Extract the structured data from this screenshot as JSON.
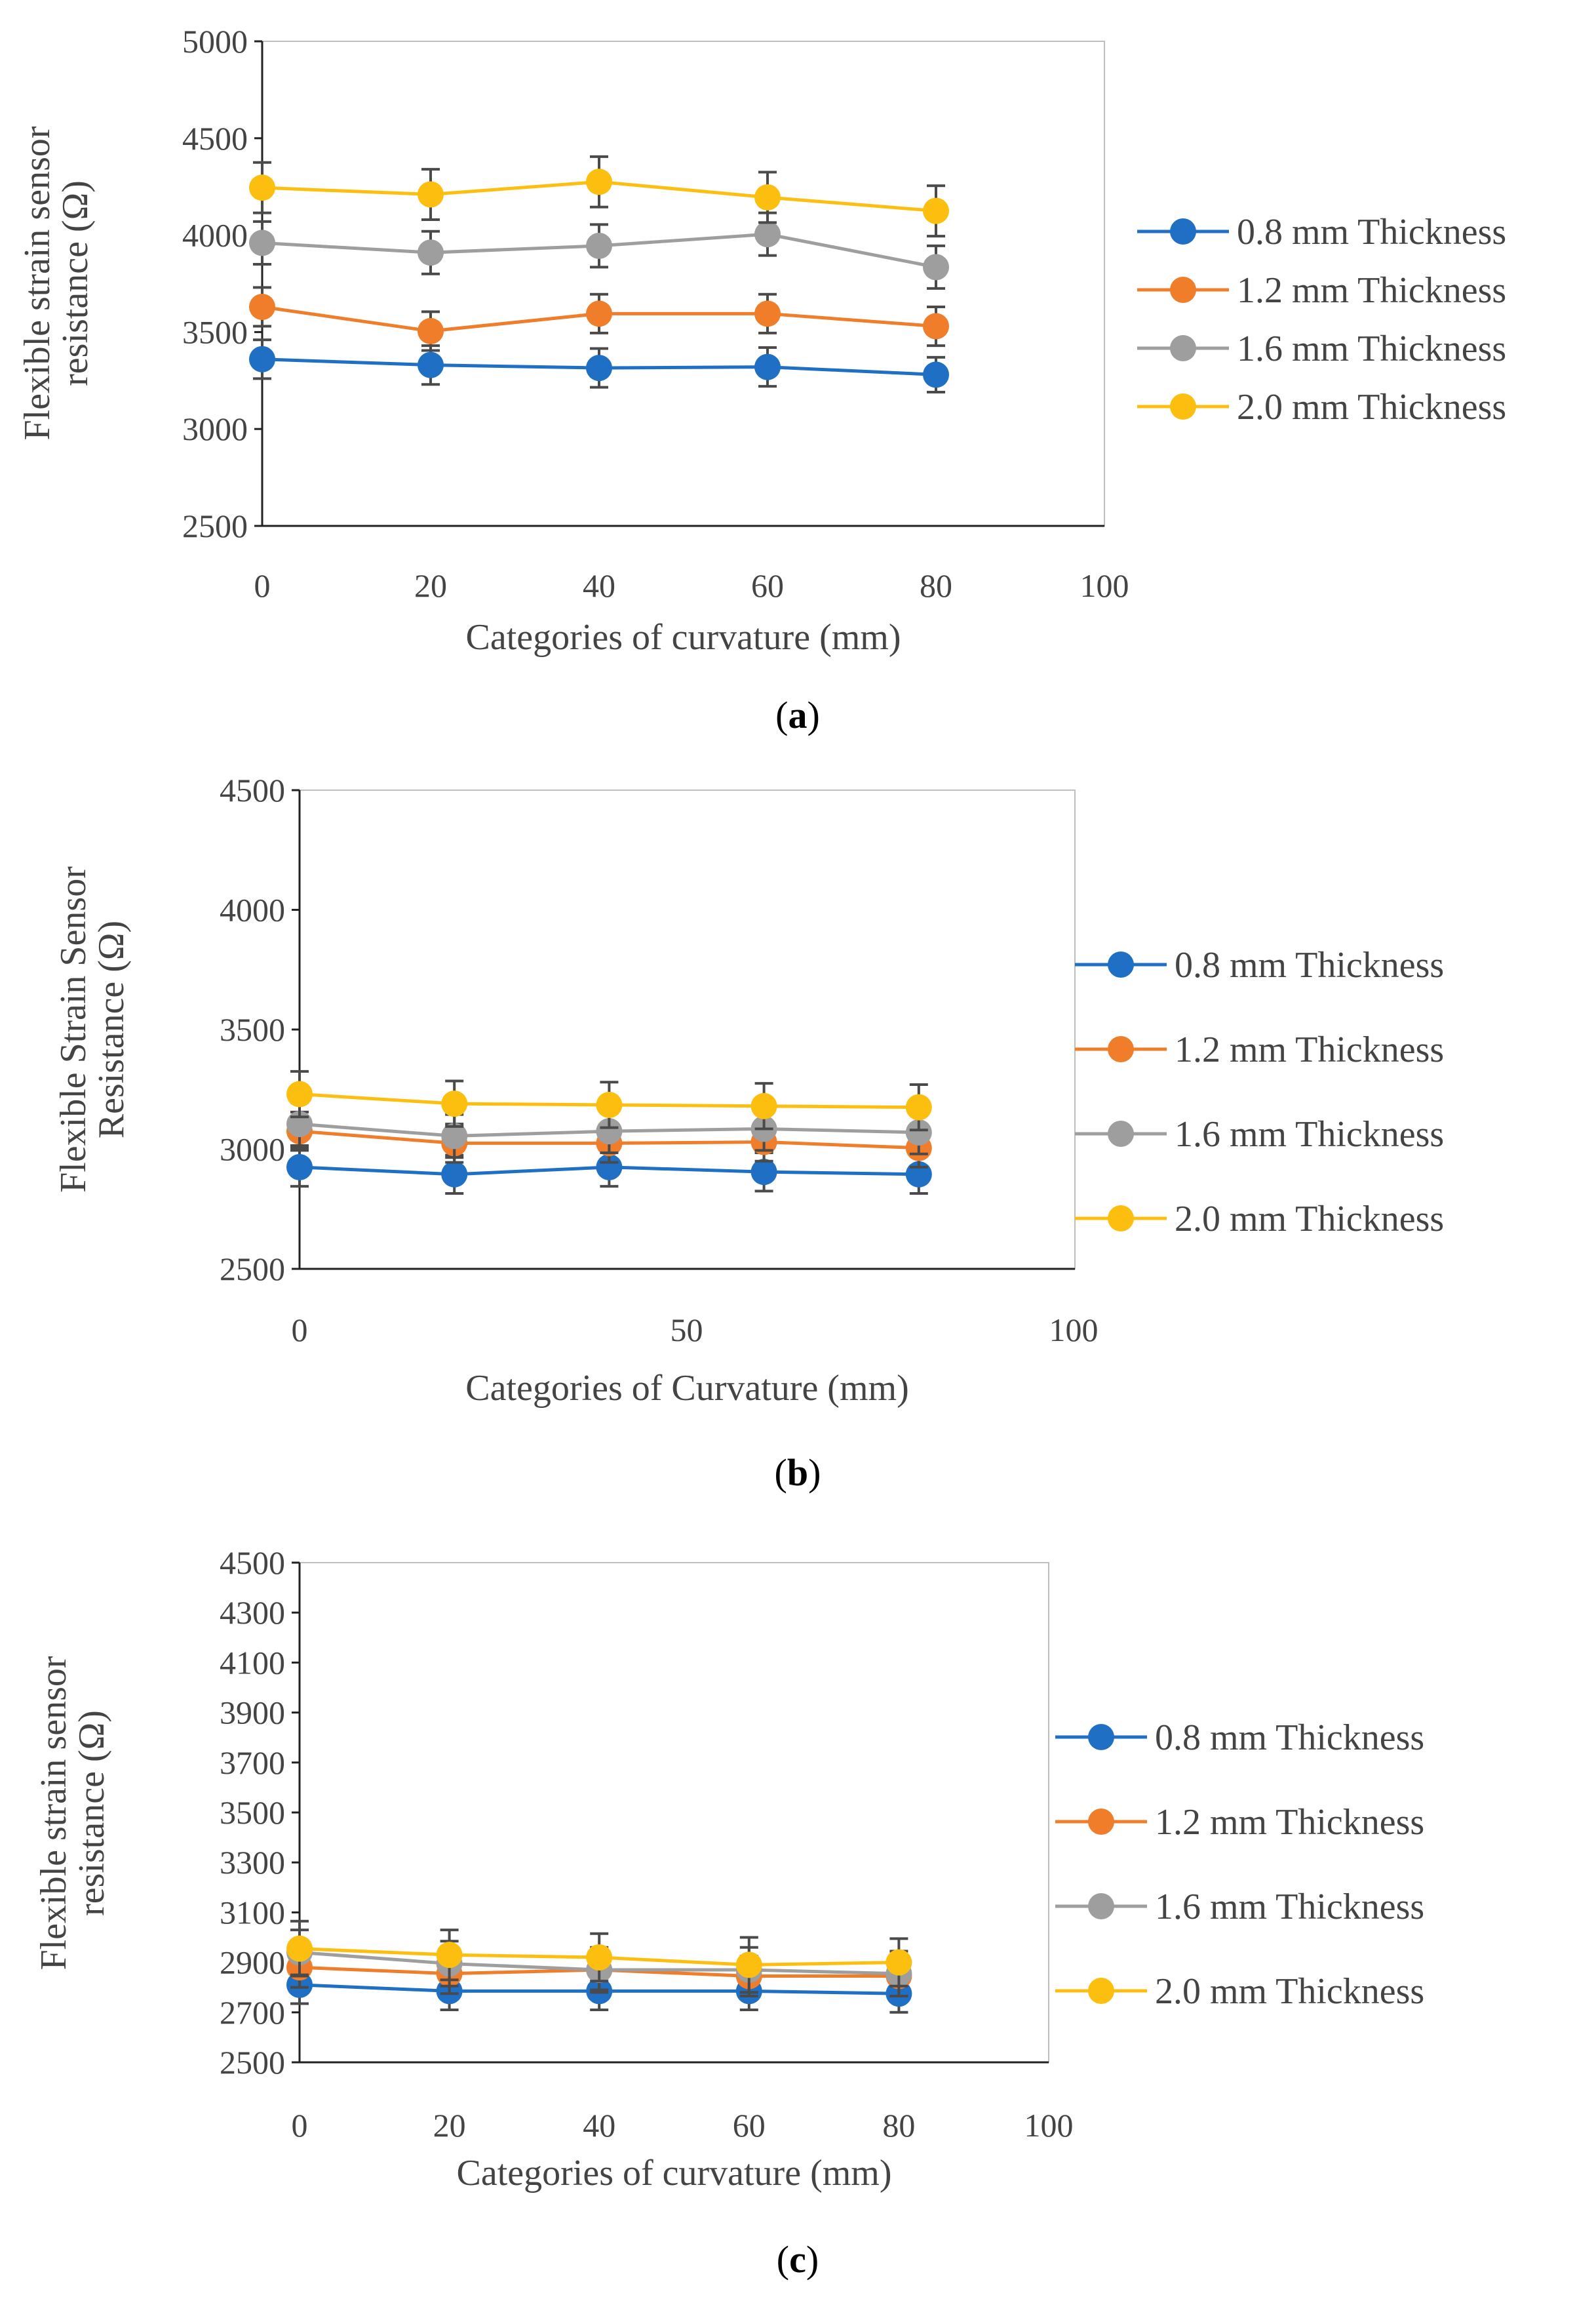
{
  "colors": {
    "s08": "#1f6fc5",
    "s12": "#f07d2a",
    "s16": "#9e9e9e",
    "s20": "#fdbf0f",
    "error_bar": "#4a4a4a",
    "axis": "#222222",
    "frame": "#bfbfbf"
  },
  "chart_data": [
    {
      "type": "line",
      "panel": "a",
      "caption": {
        "open": "(",
        "letter": "a",
        "close": ")"
      },
      "xlabel": "Categories of curvature (mm)",
      "ylabel_lines": [
        "Flexible strain sensor",
        "resistance (Ω)"
      ],
      "xlim": [
        0,
        100
      ],
      "ylim": [
        2500,
        5000
      ],
      "xticks": [
        "0",
        "20",
        "40",
        "60",
        "80",
        "100"
      ],
      "yticks": [
        "2500",
        "3000",
        "3500",
        "4000",
        "4500",
        "5000"
      ],
      "x": [
        0,
        20,
        40,
        60,
        80
      ],
      "series": [
        {
          "name": "0.8 mm Thickness",
          "color_key": "s08",
          "values": [
            3360,
            3330,
            3315,
            3320,
            3280
          ],
          "error": [
            100,
            100,
            100,
            100,
            90
          ]
        },
        {
          "name": "1.2 mm Thickness",
          "color_key": "s12",
          "values": [
            3630,
            3505,
            3595,
            3595,
            3530
          ],
          "error": [
            100,
            100,
            100,
            100,
            100
          ]
        },
        {
          "name": "1.6 mm Thickness",
          "color_key": "s16",
          "values": [
            3960,
            3910,
            3945,
            4005,
            3835
          ],
          "error": [
            110,
            110,
            110,
            110,
            110
          ]
        },
        {
          "name": "2.0 mm Thickness",
          "color_key": "s20",
          "values": [
            4245,
            4210,
            4275,
            4195,
            4125
          ],
          "error": [
            130,
            130,
            130,
            130,
            130
          ]
        }
      ],
      "legend": "right"
    },
    {
      "type": "line",
      "panel": "b",
      "caption": {
        "open": "(",
        "letter": "b",
        "close": ")"
      },
      "xlabel": "Categories of Curvature (mm)",
      "ylabel_lines": [
        "Flexible Strain Sensor",
        "Resistance (Ω)"
      ],
      "xlim": [
        0,
        100
      ],
      "ylim": [
        2500,
        4500
      ],
      "xticks": [
        "0",
        "50",
        "100"
      ],
      "yticks": [
        "2500",
        "3000",
        "3500",
        "4000",
        "4500"
      ],
      "x": [
        0,
        20,
        40,
        60,
        80
      ],
      "series": [
        {
          "name": "0.8 mm Thickness",
          "color_key": "s08",
          "values": [
            2925,
            2895,
            2925,
            2905,
            2895
          ],
          "error": [
            80,
            80,
            80,
            80,
            80
          ]
        },
        {
          "name": "1.2 mm Thickness",
          "color_key": "s12",
          "values": [
            3075,
            3025,
            3025,
            3030,
            3005
          ],
          "error": [
            80,
            80,
            80,
            80,
            80
          ]
        },
        {
          "name": "1.6 mm Thickness",
          "color_key": "s16",
          "values": [
            3105,
            3055,
            3075,
            3085,
            3070
          ],
          "error": [
            90,
            90,
            90,
            90,
            90
          ]
        },
        {
          "name": "2.0 mm Thickness",
          "color_key": "s20",
          "values": [
            3230,
            3190,
            3185,
            3180,
            3175
          ],
          "error": [
            95,
            95,
            95,
            95,
            95
          ]
        }
      ],
      "legend": "right"
    },
    {
      "type": "line",
      "panel": "c",
      "caption": {
        "open": "(",
        "letter": "c",
        "close": ")"
      },
      "xlabel": "Categories of curvature (mm)",
      "ylabel_lines": [
        "Flexible strain sensor",
        "resistance (Ω)"
      ],
      "xlim": [
        0,
        100
      ],
      "ylim": [
        2500,
        4500
      ],
      "xticks": [
        "0",
        "20",
        "40",
        "60",
        "80",
        "100"
      ],
      "yticks": [
        "2500",
        "2700",
        "2900",
        "3100",
        "3300",
        "3500",
        "3700",
        "3900",
        "4100",
        "4300",
        "4500"
      ],
      "x": [
        0,
        20,
        40,
        60,
        80
      ],
      "series": [
        {
          "name": "0.8 mm Thickness",
          "color_key": "s08",
          "values": [
            2810,
            2785,
            2785,
            2785,
            2775
          ],
          "error": [
            75,
            75,
            75,
            75,
            75
          ]
        },
        {
          "name": "1.2 mm Thickness",
          "color_key": "s12",
          "values": [
            2880,
            2855,
            2870,
            2845,
            2845
          ],
          "error": [
            80,
            80,
            80,
            80,
            80
          ]
        },
        {
          "name": "1.6 mm Thickness",
          "color_key": "s16",
          "values": [
            2940,
            2895,
            2870,
            2870,
            2855
          ],
          "error": [
            90,
            90,
            90,
            90,
            90
          ]
        },
        {
          "name": "2.0 mm Thickness",
          "color_key": "s20",
          "values": [
            2955,
            2930,
            2920,
            2890,
            2900
          ],
          "error": [
            110,
            100,
            95,
            110,
            95
          ]
        }
      ],
      "legend": "right"
    }
  ]
}
